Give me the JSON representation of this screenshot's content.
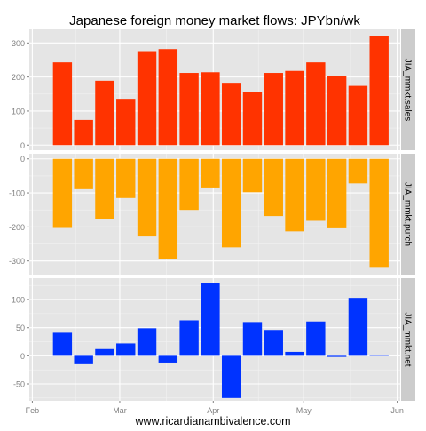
{
  "chart_data": {
    "type": "bar",
    "title": "Japanese foreign money market flows: JPYbn/wk",
    "xlabel": "www.ricardianambivalence.com",
    "x_ticks": [
      {
        "label": "Feb",
        "date": "2012-02-01"
      },
      {
        "label": "Mar",
        "date": "2012-03-01"
      },
      {
        "label": "Apr",
        "date": "2012-04-01"
      },
      {
        "label": "May",
        "date": "2012-05-01"
      },
      {
        "label": "Jun",
        "date": "2012-06-01"
      }
    ],
    "x_range": [
      "2012-01-31",
      "2012-06-02"
    ],
    "grid": true,
    "dates": [
      "2012-02-11",
      "2012-02-18",
      "2012-02-25",
      "2012-03-03",
      "2012-03-10",
      "2012-03-17",
      "2012-03-24",
      "2012-03-31",
      "2012-04-07",
      "2012-04-14",
      "2012-04-21",
      "2012-04-28",
      "2012-05-05",
      "2012-05-12",
      "2012-05-19",
      "2012-05-26"
    ],
    "panels": [
      {
        "strip": "JIA_mmkt.sales",
        "color": "#ff3300",
        "ylim": [
          -15,
          340
        ],
        "yticks": [
          0,
          100,
          200,
          300
        ],
        "values": [
          243,
          74,
          189,
          136,
          276,
          282,
          212,
          214,
          183,
          155,
          212,
          218,
          243,
          204,
          174,
          320
        ]
      },
      {
        "strip": "JIA_mmkt.purch",
        "color": "#ffa500",
        "ylim": [
          -340,
          15
        ],
        "yticks": [
          0,
          -100,
          -200,
          -300
        ],
        "values": [
          -203,
          -89,
          -178,
          -115,
          -228,
          -294,
          -150,
          -84,
          -260,
          -98,
          -168,
          -213,
          -182,
          -204,
          -72,
          -320
        ]
      },
      {
        "strip": "JIA_mmkt.net",
        "color": "#0033ff",
        "ylim": [
          -80,
          138
        ],
        "yticks": [
          100,
          50,
          0,
          -50
        ],
        "values": [
          41,
          -15,
          12,
          22,
          49,
          -12,
          63,
          130,
          -75,
          60,
          46,
          7,
          61,
          -2,
          103,
          2
        ]
      }
    ]
  }
}
